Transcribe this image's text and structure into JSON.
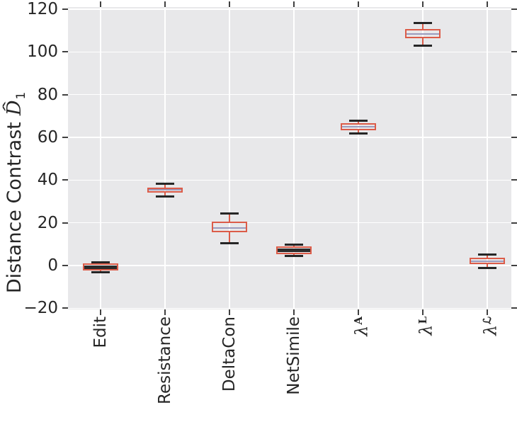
{
  "chart_data": {
    "type": "boxplot",
    "title": "",
    "ylabel": {
      "prefix": "Distance Contrast",
      "math_base": "D",
      "math_accent": "ˆ",
      "math_sub": "1"
    },
    "y_axis": {
      "min": -20,
      "max": 120,
      "tick_step": 20,
      "tick_values": [
        120,
        100,
        80,
        60,
        40,
        20,
        0,
        -20
      ],
      "tick_labels": [
        "120",
        "100",
        "80",
        "60",
        "40",
        "20",
        "0",
        "−20"
      ],
      "grid": true
    },
    "x_axis": {
      "grid": true,
      "label_rotation_deg": 90
    },
    "categories": [
      {
        "id": "edit",
        "label": "Edit"
      },
      {
        "id": "resistance",
        "label": "Resistance"
      },
      {
        "id": "deltacon",
        "label": "DeltaCon"
      },
      {
        "id": "netsimile",
        "label": "NetSimile"
      },
      {
        "id": "lambda-adjacency",
        "label": "λ",
        "sup": "A"
      },
      {
        "id": "lambda-laplacian",
        "label": "λ",
        "sup": "L"
      },
      {
        "id": "lambda-normalized-laplacian",
        "label": "λ",
        "sup": "ℒ"
      }
    ],
    "boxes": [
      {
        "category": "Edit",
        "whisker_low": -3.0,
        "q1": -2.3,
        "median": -0.8,
        "q3": 1.0,
        "whisker_high": 1.5,
        "median_style": "dark"
      },
      {
        "category": "Resistance",
        "whisker_low": 32.5,
        "q1": 34.0,
        "median": 35.4,
        "q3": 36.4,
        "whisker_high": 38.4,
        "median_style": "light"
      },
      {
        "category": "DeltaCon",
        "whisker_low": 10.6,
        "q1": 15.6,
        "median": 17.5,
        "q3": 20.5,
        "whisker_high": 24.5,
        "median_style": "light"
      },
      {
        "category": "NetSimile",
        "whisker_low": 4.6,
        "q1": 5.3,
        "median": 7.3,
        "q3": 9.0,
        "whisker_high": 9.7,
        "median_style": "dark"
      },
      {
        "category": "λ^A",
        "whisker_low": 61.9,
        "q1": 63.2,
        "median": 64.9,
        "q3": 66.6,
        "whisker_high": 67.9,
        "median_style": "light"
      },
      {
        "category": "λ^L",
        "whisker_low": 103.0,
        "q1": 106.3,
        "median": 108.3,
        "q3": 110.6,
        "whisker_high": 113.6,
        "median_style": "light"
      },
      {
        "category": "λ^ℒ",
        "whisker_low": -1.0,
        "q1": 0.7,
        "median": 2.0,
        "q3": 3.6,
        "whisker_high": 5.3,
        "median_style": "light"
      }
    ],
    "style": {
      "figure_bg": "#ffffff",
      "plot_bg": "#e8e8ea",
      "grid_color": "#ffffff",
      "box_edge_color": "#dc5c49",
      "median_light_color": "#9b9bbd",
      "median_dark_color": "#2b2b2b",
      "cap_color": "#262626",
      "tick_color": "#404040",
      "text_color": "#262626"
    }
  }
}
